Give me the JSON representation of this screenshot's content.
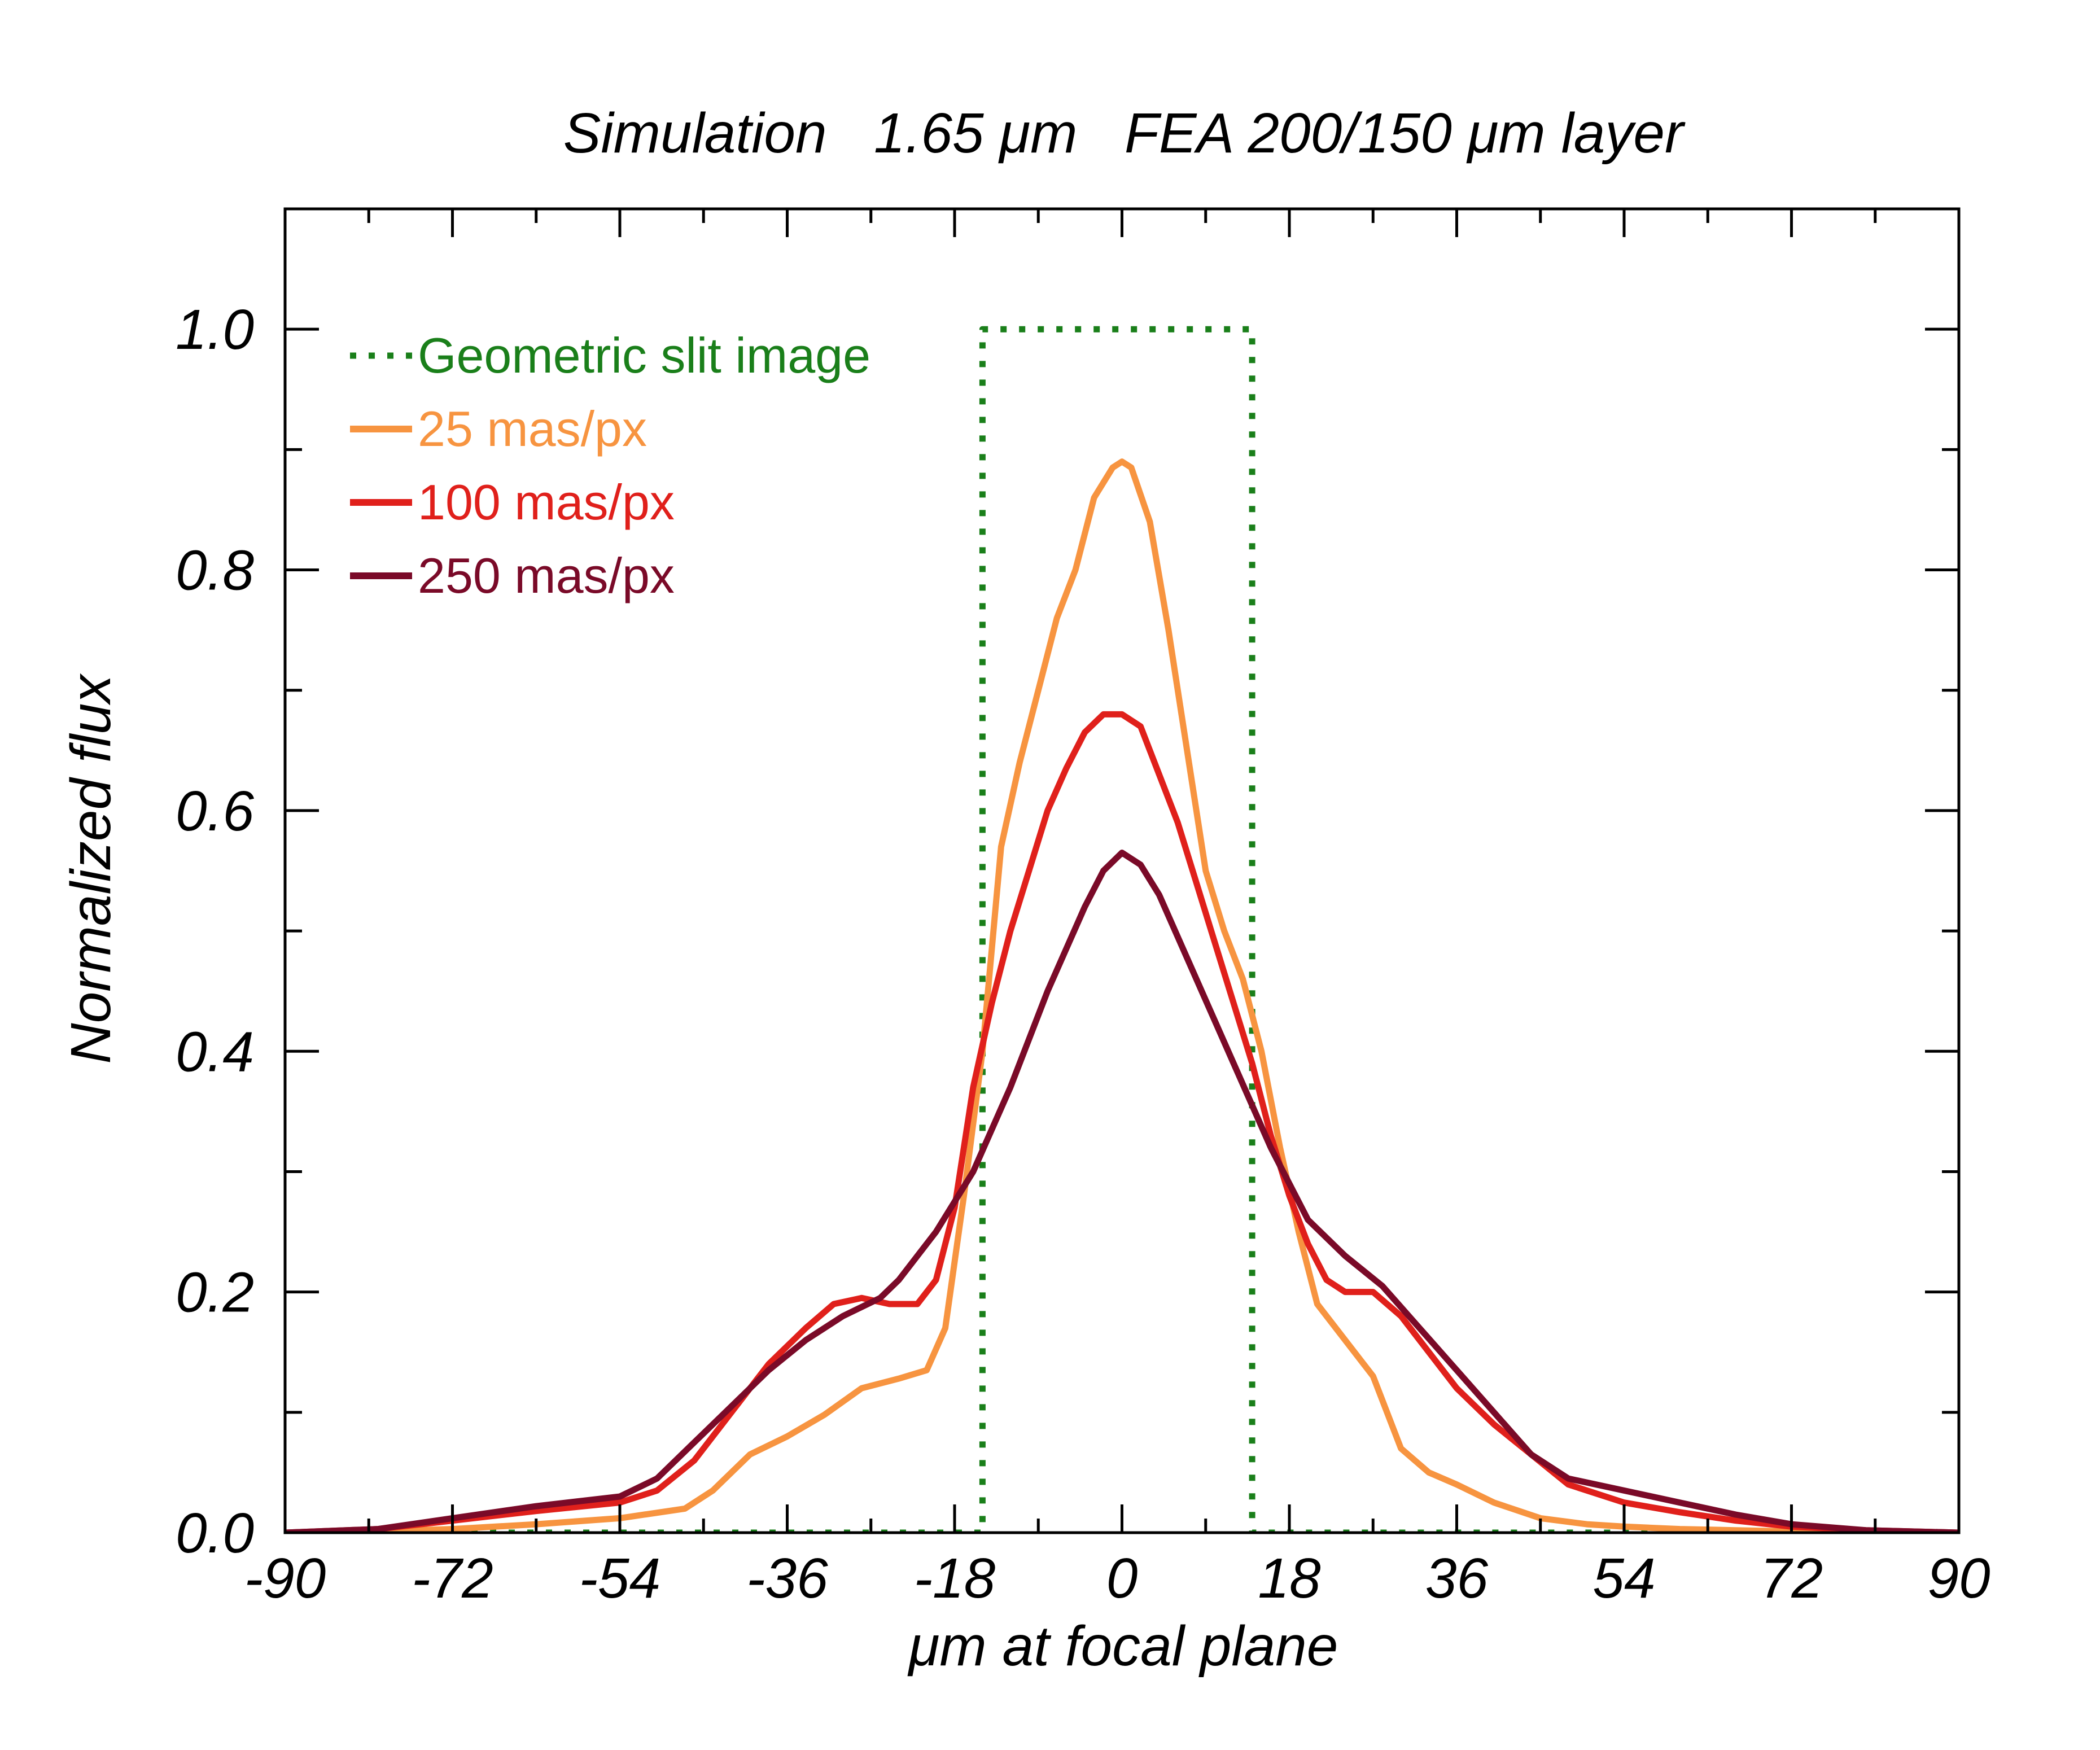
{
  "chart_data": {
    "type": "line",
    "title": "Simulation   1.65 μm   FEA 200/150 μm layer",
    "xlabel": "μm at focal plane",
    "ylabel": "Normalized flux",
    "xlim": [
      -90,
      90
    ],
    "ylim": [
      0,
      1.1
    ],
    "x_ticks": [
      -90,
      -72,
      -54,
      -36,
      -18,
      0,
      18,
      36,
      54,
      72,
      90
    ],
    "x_tick_labels": [
      "-90",
      "-72",
      "-54",
      "-36",
      "-18",
      "0",
      "18",
      "36",
      "54",
      "72",
      "90"
    ],
    "y_ticks": [
      0.0,
      0.2,
      0.4,
      0.6,
      0.8,
      1.0
    ],
    "y_tick_labels": [
      "0.0",
      "0.2",
      "0.4",
      "0.6",
      "0.8",
      "1.0"
    ],
    "grid": false,
    "legend_position": "top-left",
    "series": [
      {
        "name": "Geometric slit image",
        "color": "#1a7f1a",
        "style": "dotted",
        "x": [
          -90,
          -15,
          -15,
          14,
          14,
          90
        ],
        "y": [
          0,
          0,
          1.0,
          1.0,
          0,
          0
        ]
      },
      {
        "name": "25 mas/px",
        "color": "#f79440",
        "style": "solid",
        "x": [
          -90,
          -80,
          -72,
          -63,
          -54,
          -47,
          -44,
          -40,
          -36,
          -32,
          -28,
          -24,
          -21,
          -19,
          -17,
          -15,
          -13,
          -11,
          -9,
          -7,
          -5,
          -3,
          -1,
          0,
          1,
          3,
          5,
          7,
          9,
          11,
          13,
          15,
          17,
          19,
          21,
          24,
          27,
          30,
          33,
          36,
          40,
          45,
          50,
          54,
          60,
          66,
          72,
          80,
          90
        ],
        "y": [
          0.0,
          0.001,
          0.003,
          0.007,
          0.012,
          0.02,
          0.035,
          0.065,
          0.08,
          0.098,
          0.12,
          0.128,
          0.135,
          0.17,
          0.28,
          0.4,
          0.57,
          0.64,
          0.7,
          0.76,
          0.8,
          0.86,
          0.885,
          0.89,
          0.885,
          0.84,
          0.75,
          0.65,
          0.55,
          0.5,
          0.46,
          0.4,
          0.32,
          0.25,
          0.19,
          0.16,
          0.13,
          0.07,
          0.05,
          0.04,
          0.025,
          0.012,
          0.007,
          0.005,
          0.003,
          0.002,
          0.001,
          0.0,
          0.0
        ]
      },
      {
        "name": "100 mas/px",
        "color": "#e0201b",
        "style": "solid",
        "x": [
          -90,
          -80,
          -72,
          -63,
          -54,
          -50,
          -46,
          -42,
          -38,
          -34,
          -31,
          -28,
          -25,
          -22,
          -20,
          -18,
          -16,
          -14,
          -12,
          -10,
          -8,
          -6,
          -4,
          -2,
          0,
          2,
          4,
          6,
          8,
          10,
          12,
          14,
          16,
          18,
          20,
          22,
          24,
          27,
          30,
          33,
          36,
          40,
          44,
          48,
          54,
          60,
          66,
          72,
          80,
          90
        ],
        "y": [
          0.0,
          0.003,
          0.01,
          0.018,
          0.025,
          0.035,
          0.06,
          0.1,
          0.14,
          0.17,
          0.19,
          0.195,
          0.19,
          0.19,
          0.21,
          0.27,
          0.37,
          0.44,
          0.5,
          0.55,
          0.6,
          0.635,
          0.665,
          0.68,
          0.68,
          0.67,
          0.63,
          0.59,
          0.54,
          0.49,
          0.44,
          0.39,
          0.33,
          0.28,
          0.24,
          0.21,
          0.2,
          0.2,
          0.18,
          0.15,
          0.12,
          0.09,
          0.065,
          0.04,
          0.025,
          0.017,
          0.01,
          0.005,
          0.002,
          0.0
        ]
      },
      {
        "name": "250 mas/px",
        "color": "#7a0a28",
        "style": "solid",
        "x": [
          -90,
          -80,
          -72,
          -63,
          -54,
          -50,
          -46,
          -42,
          -38,
          -34,
          -30,
          -26,
          -24,
          -20,
          -16,
          -12,
          -8,
          -4,
          -2,
          0,
          2,
          4,
          8,
          12,
          16,
          20,
          24,
          28,
          32,
          36,
          40,
          44,
          48,
          54,
          60,
          66,
          72,
          80,
          90
        ],
        "y": [
          0.0,
          0.003,
          0.012,
          0.022,
          0.03,
          0.045,
          0.075,
          0.105,
          0.135,
          0.16,
          0.18,
          0.195,
          0.21,
          0.25,
          0.3,
          0.37,
          0.45,
          0.52,
          0.55,
          0.565,
          0.555,
          0.53,
          0.46,
          0.39,
          0.32,
          0.26,
          0.23,
          0.205,
          0.17,
          0.135,
          0.1,
          0.065,
          0.045,
          0.035,
          0.025,
          0.015,
          0.007,
          0.002,
          0.0
        ]
      }
    ]
  }
}
